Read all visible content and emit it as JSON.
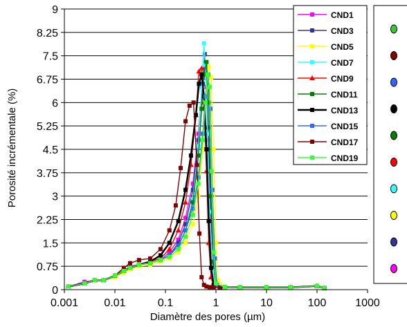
{
  "chart_data": {
    "type": "line",
    "xlabel": "Diamètre des pores (µm)",
    "ylabel": "Porosité incrémentale (%)",
    "xscale": "log",
    "xlim": [
      0.001,
      1000
    ],
    "ylim": [
      0,
      9
    ],
    "x_ticks": [
      "0.001",
      "0.01",
      "0.1",
      "1",
      "10",
      "100",
      "1000"
    ],
    "y_ticks": [
      "0",
      "0.75",
      "1.5",
      "2.25",
      "3",
      "3.75",
      "4.5",
      "5.25",
      "6",
      "6.75",
      "7.5",
      "8.25",
      "9"
    ],
    "grid": "horizontal",
    "legend_position": "top-right",
    "series": [
      {
        "name": "CND1",
        "color": "#ff00ff",
        "marker": "square",
        "x": [
          0.0012,
          0.0025,
          0.004,
          0.006,
          0.01,
          0.015,
          0.02,
          0.03,
          0.05,
          0.08,
          0.12,
          0.18,
          0.25,
          0.35,
          0.45,
          0.55,
          0.6,
          0.65,
          0.7,
          0.8,
          0.9,
          1.0,
          1.5,
          3,
          10,
          30,
          100,
          140
        ],
        "y": [
          0.1,
          0.25,
          0.3,
          0.3,
          0.45,
          0.6,
          0.75,
          0.8,
          0.85,
          0.95,
          1.2,
          1.6,
          2.3,
          3.4,
          5.0,
          6.8,
          7.15,
          6.5,
          4.8,
          2.2,
          0.7,
          0.15,
          0.08,
          0.07,
          0.07,
          0.07,
          0.12,
          0.05
        ]
      },
      {
        "name": "CND3",
        "color": "#333399",
        "marker": "square",
        "x": [
          0.0012,
          0.0025,
          0.004,
          0.006,
          0.01,
          0.015,
          0.02,
          0.03,
          0.05,
          0.08,
          0.12,
          0.18,
          0.25,
          0.35,
          0.45,
          0.55,
          0.6,
          0.65,
          0.7,
          0.8,
          0.9,
          1.0,
          1.5,
          3,
          10,
          30,
          100,
          140
        ],
        "y": [
          0.1,
          0.2,
          0.3,
          0.3,
          0.45,
          0.6,
          0.7,
          0.8,
          0.85,
          0.95,
          1.1,
          1.5,
          2.1,
          3.2,
          4.8,
          6.6,
          7.55,
          6.9,
          5.2,
          2.5,
          0.8,
          0.15,
          0.08,
          0.07,
          0.07,
          0.07,
          0.12,
          0.05
        ]
      },
      {
        "name": "CND5",
        "color": "#ffff00",
        "marker": "square",
        "x": [
          0.0012,
          0.0025,
          0.004,
          0.006,
          0.01,
          0.015,
          0.02,
          0.03,
          0.05,
          0.08,
          0.12,
          0.18,
          0.25,
          0.35,
          0.45,
          0.55,
          0.65,
          0.72,
          0.8,
          0.9,
          1.0,
          1.1,
          1.5,
          3,
          10,
          30,
          100,
          140
        ],
        "y": [
          0.1,
          0.2,
          0.3,
          0.3,
          0.4,
          0.55,
          0.65,
          0.75,
          0.8,
          0.9,
          1.0,
          1.2,
          1.5,
          2.1,
          3.0,
          4.5,
          6.2,
          7.15,
          6.8,
          4.5,
          1.5,
          0.3,
          0.08,
          0.07,
          0.07,
          0.07,
          0.12,
          0.05
        ]
      },
      {
        "name": "CND7",
        "color": "#33ffff",
        "marker": "square",
        "x": [
          0.0012,
          0.0025,
          0.004,
          0.006,
          0.01,
          0.015,
          0.02,
          0.03,
          0.05,
          0.08,
          0.12,
          0.18,
          0.25,
          0.35,
          0.45,
          0.52,
          0.58,
          0.62,
          0.68,
          0.75,
          0.85,
          1.0,
          1.5,
          3,
          10,
          30,
          100,
          140
        ],
        "y": [
          0.1,
          0.2,
          0.3,
          0.3,
          0.45,
          0.6,
          0.7,
          0.8,
          0.85,
          0.95,
          1.1,
          1.4,
          1.9,
          2.9,
          4.6,
          6.5,
          7.9,
          7.2,
          5.0,
          2.5,
          0.6,
          0.1,
          0.08,
          0.07,
          0.07,
          0.07,
          0.12,
          0.05
        ]
      },
      {
        "name": "CND9",
        "color": "#ff0000",
        "marker": "triangle",
        "x": [
          0.0012,
          0.0025,
          0.004,
          0.006,
          0.01,
          0.015,
          0.02,
          0.03,
          0.05,
          0.08,
          0.12,
          0.18,
          0.25,
          0.32,
          0.4,
          0.46,
          0.52,
          0.58,
          0.65,
          0.72,
          0.8,
          0.9,
          1.2,
          3,
          10,
          30,
          100,
          140
        ],
        "y": [
          0.1,
          0.2,
          0.3,
          0.3,
          0.45,
          0.6,
          0.7,
          0.8,
          0.9,
          1.0,
          1.3,
          1.9,
          2.8,
          4.0,
          5.6,
          7.0,
          7.1,
          6.0,
          3.8,
          1.5,
          0.4,
          0.1,
          0.08,
          0.07,
          0.07,
          0.07,
          0.12,
          0.05
        ]
      },
      {
        "name": "CND11",
        "color": "#008000",
        "marker": "square",
        "x": [
          0.0012,
          0.0025,
          0.004,
          0.006,
          0.01,
          0.015,
          0.02,
          0.03,
          0.05,
          0.08,
          0.12,
          0.18,
          0.25,
          0.35,
          0.45,
          0.52,
          0.58,
          0.65,
          0.72,
          0.8,
          0.9,
          1.0,
          1.5,
          3,
          10,
          30,
          100,
          140
        ],
        "y": [
          0.1,
          0.2,
          0.3,
          0.3,
          0.45,
          0.6,
          0.7,
          0.8,
          0.85,
          0.95,
          1.1,
          1.4,
          1.9,
          2.8,
          4.3,
          5.8,
          6.9,
          7.3,
          6.0,
          3.0,
          0.9,
          0.15,
          0.08,
          0.07,
          0.07,
          0.07,
          0.12,
          0.05
        ]
      },
      {
        "name": "CND13",
        "color": "#000000",
        "marker": "square",
        "x": [
          0.0012,
          0.0025,
          0.004,
          0.006,
          0.01,
          0.015,
          0.02,
          0.03,
          0.05,
          0.08,
          0.12,
          0.18,
          0.25,
          0.32,
          0.4,
          0.46,
          0.52,
          0.58,
          0.65,
          0.72,
          0.8,
          0.9,
          1.2,
          3,
          10,
          30,
          100,
          140
        ],
        "y": [
          0.1,
          0.2,
          0.3,
          0.3,
          0.45,
          0.6,
          0.7,
          0.8,
          0.9,
          1.1,
          1.5,
          2.2,
          3.2,
          4.3,
          5.6,
          6.6,
          6.9,
          6.2,
          4.5,
          2.2,
          0.7,
          0.15,
          0.08,
          0.07,
          0.07,
          0.07,
          0.12,
          0.05
        ]
      },
      {
        "name": "CND15",
        "color": "#3366ff",
        "marker": "square",
        "x": [
          0.0012,
          0.0025,
          0.004,
          0.006,
          0.01,
          0.015,
          0.02,
          0.03,
          0.05,
          0.08,
          0.12,
          0.18,
          0.25,
          0.35,
          0.45,
          0.55,
          0.62,
          0.7,
          0.78,
          0.85,
          0.95,
          1.05,
          1.5,
          3,
          10,
          30,
          100,
          140
        ],
        "y": [
          0.1,
          0.2,
          0.3,
          0.3,
          0.45,
          0.6,
          0.7,
          0.8,
          0.85,
          0.95,
          1.1,
          1.4,
          1.9,
          2.6,
          3.6,
          5.0,
          6.2,
          6.9,
          5.8,
          3.2,
          1.0,
          0.15,
          0.08,
          0.07,
          0.07,
          0.07,
          0.12,
          0.05
        ]
      },
      {
        "name": "CND17",
        "color": "#800000",
        "marker": "square",
        "x": [
          0.0012,
          0.0025,
          0.004,
          0.006,
          0.01,
          0.015,
          0.02,
          0.03,
          0.05,
          0.08,
          0.12,
          0.16,
          0.2,
          0.25,
          0.3,
          0.36,
          0.42,
          0.47,
          0.52,
          0.58,
          0.65,
          0.75,
          0.9,
          1.2,
          3,
          10,
          30,
          100,
          140
        ],
        "y": [
          0.1,
          0.2,
          0.3,
          0.3,
          0.45,
          0.7,
          0.85,
          0.95,
          1.0,
          1.3,
          1.9,
          2.7,
          3.9,
          5.4,
          5.9,
          6.0,
          4.0,
          1.8,
          0.4,
          0.15,
          0.1,
          0.08,
          0.08,
          0.07,
          0.07,
          0.07,
          0.07,
          0.12,
          0.05
        ]
      },
      {
        "name": "CND19",
        "color": "#33ff33",
        "marker": "square",
        "x": [
          0.0012,
          0.0025,
          0.004,
          0.006,
          0.01,
          0.015,
          0.02,
          0.03,
          0.05,
          0.08,
          0.12,
          0.18,
          0.25,
          0.35,
          0.45,
          0.55,
          0.62,
          0.68,
          0.75,
          0.82,
          0.9,
          1.0,
          1.5,
          3,
          10,
          30,
          100,
          140
        ],
        "y": [
          0.1,
          0.2,
          0.3,
          0.3,
          0.45,
          0.6,
          0.7,
          0.8,
          0.85,
          0.95,
          1.05,
          1.3,
          1.7,
          2.4,
          3.4,
          4.8,
          6.0,
          6.9,
          6.5,
          3.8,
          1.2,
          0.2,
          0.08,
          0.07,
          0.07,
          0.07,
          0.12,
          0.05
        ]
      }
    ],
    "secondary_legend": {
      "colors": [
        "#33cc33",
        "#800000",
        "#3366ff",
        "#000000",
        "#008000",
        "#ff0000",
        "#33ffff",
        "#ffff00",
        "#333399",
        "#ff00ff"
      ]
    }
  }
}
